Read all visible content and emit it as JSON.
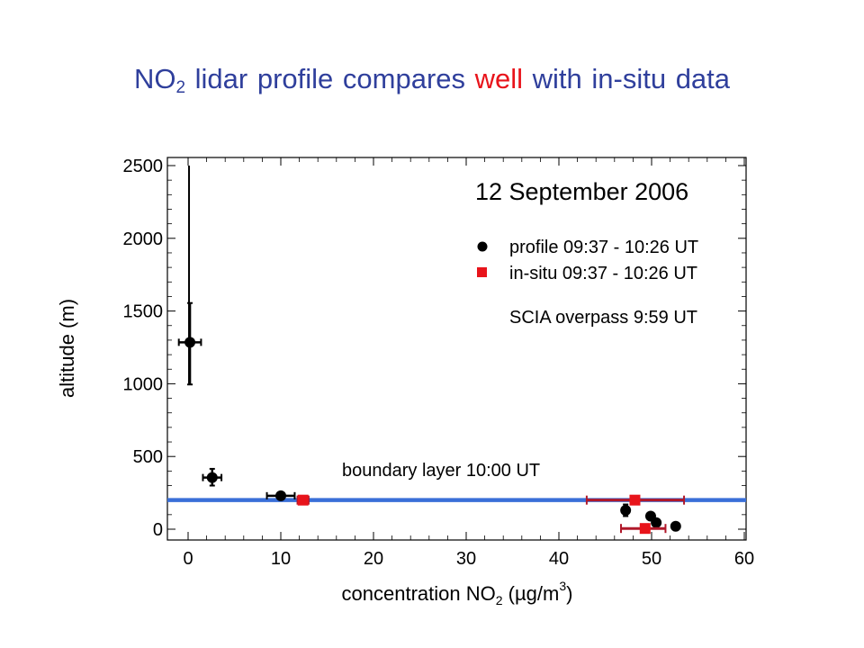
{
  "slide": {
    "title_pre": "NO",
    "title_sub": "2",
    "title_mid": " lidar profile compares ",
    "title_highlight": "well",
    "title_post": " with in-situ data",
    "highlight_color": "#e8141b",
    "title_color": "#2f3f9c"
  },
  "chart_data": {
    "type": "scatter",
    "title": "12 September 2006",
    "xlabel_pre": "concentration NO",
    "xlabel_sub": "2",
    "xlabel_mid": " (µg/m",
    "xlabel_sup": "3",
    "xlabel_post": ")",
    "ylabel": "altitude (m)",
    "xlim": [
      -2,
      60
    ],
    "ylim": [
      -80,
      2550
    ],
    "x_ticks": [
      0,
      10,
      20,
      30,
      40,
      50,
      60
    ],
    "y_ticks": [
      0,
      500,
      1000,
      1500,
      2000,
      2500
    ],
    "grid": false,
    "legend_position": "top-right",
    "series": [
      {
        "name": "profile 09:37 - 10:26 UT",
        "marker": "circle",
        "color": "#000000",
        "points": [
          {
            "x": 0.2,
            "y": 1285,
            "xerr": 1.2,
            "yerr_lo": 290,
            "yerr_hi": 270
          },
          {
            "x": 2.6,
            "y": 355,
            "xerr": 1.0,
            "yerr_lo": 55,
            "yerr_hi": 60
          },
          {
            "x": 10.0,
            "y": 230,
            "xerr": 1.5,
            "yerr_lo": 0,
            "yerr_hi": 0
          },
          {
            "x": 47.2,
            "y": 130,
            "xerr": 0,
            "yerr_lo": 40,
            "yerr_hi": 40
          },
          {
            "x": 49.9,
            "y": 90,
            "xerr": 0,
            "yerr_lo": 0,
            "yerr_hi": 0
          },
          {
            "x": 50.5,
            "y": 45,
            "xerr": 0,
            "yerr_lo": 0,
            "yerr_hi": 0
          },
          {
            "x": 52.6,
            "y": 20,
            "xerr": 0,
            "yerr_lo": 0,
            "yerr_hi": 0
          }
        ]
      },
      {
        "name": "in-situ 09:37 - 10:26 UT",
        "marker": "square",
        "color": "#e8141b",
        "errorbar_color": "#b0182a",
        "points": [
          {
            "x": 12.4,
            "y": 200,
            "xerr": 0.6
          },
          {
            "x": 48.2,
            "y": 200,
            "xerr_lo": 5.2,
            "xerr_hi": 5.3
          },
          {
            "x": 49.3,
            "y": 5,
            "xerr_lo": 2.6,
            "xerr_hi": 2.2
          }
        ]
      }
    ],
    "reference_lines": [
      {
        "orientation": "horizontal",
        "y": 200,
        "color": "#3a6fd8",
        "label": "boundary layer 10:00 UT"
      },
      {
        "orientation": "vertical",
        "x": 0.1,
        "y_range": [
          1000,
          2500
        ],
        "color": "#000000"
      }
    ],
    "annotations": [
      {
        "text": "SCIA overpass 9:59 UT"
      }
    ]
  }
}
